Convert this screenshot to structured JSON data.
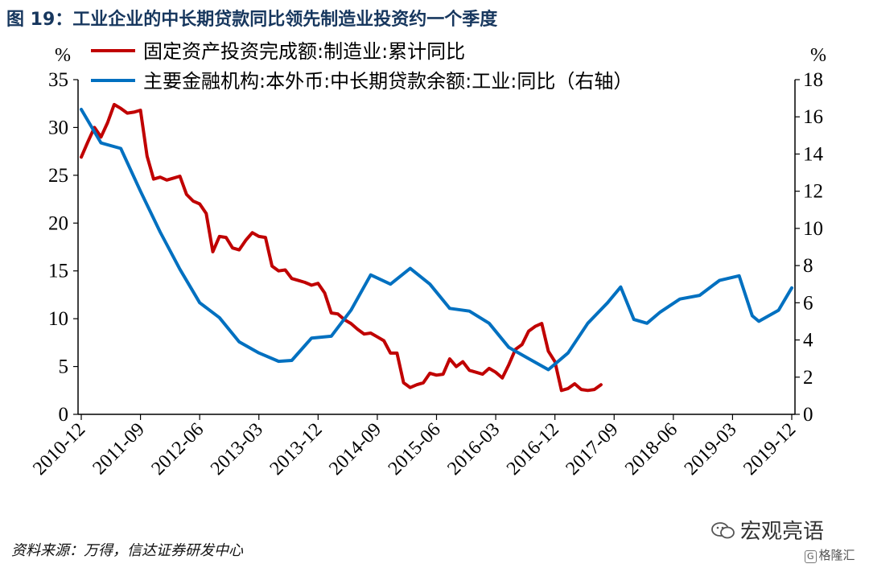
{
  "figure_title": "图  19：工业企业的中长期贷款同比领先制造业投资约一个季度",
  "source_note": "资料来源：万得，信达证券研发中心",
  "watermark": {
    "name": "宏观亮语",
    "sub": "格隆汇",
    "sub_icon": "G"
  },
  "colors": {
    "red": "#C00000",
    "blue": "#0070C0",
    "title": "#17375E",
    "axis": "#000000"
  },
  "chart_data": {
    "type": "line",
    "title": "工业企业的中长期贷款同比领先制造业投资约一个季度",
    "left_unit": "%",
    "right_unit": "%",
    "ylim_left": [
      0,
      35
    ],
    "ylim_right": [
      0,
      18
    ],
    "left_ticks": [
      "0",
      "5",
      "10",
      "15",
      "20",
      "25",
      "30",
      "35"
    ],
    "right_ticks": [
      "0",
      "2",
      "4",
      "6",
      "8",
      "10",
      "12",
      "14",
      "16",
      "18"
    ],
    "x_tick_labels": [
      "2010-12",
      "2011-09",
      "2012-06",
      "2013-03",
      "2013-12",
      "2014-09",
      "2015-06",
      "2016-03",
      "2016-12",
      "2017-09",
      "2018-06",
      "2019-03",
      "2019-12"
    ],
    "legend_position": "top",
    "series": [
      {
        "name": "固定资产投资完成额:制造业:累计同比",
        "axis": "left",
        "color": "#C00000",
        "points": [
          [
            0,
            26.9
          ],
          [
            1,
            28.5
          ],
          [
            2,
            30.0
          ],
          [
            3,
            29.0
          ],
          [
            4,
            30.5
          ],
          [
            5,
            32.4
          ],
          [
            6,
            32.0
          ],
          [
            7,
            31.5
          ],
          [
            8,
            31.6
          ],
          [
            9,
            31.8
          ],
          [
            10,
            27.0
          ],
          [
            11,
            24.6
          ],
          [
            12,
            24.8
          ],
          [
            13,
            24.5
          ],
          [
            14,
            24.7
          ],
          [
            15,
            24.9
          ],
          [
            16,
            23.0
          ],
          [
            17,
            22.3
          ],
          [
            18,
            22.0
          ],
          [
            19,
            21.0
          ],
          [
            20,
            17.0
          ],
          [
            21,
            18.6
          ],
          [
            22,
            18.5
          ],
          [
            23,
            17.4
          ],
          [
            24,
            17.2
          ],
          [
            25,
            18.2
          ],
          [
            26,
            19.0
          ],
          [
            27,
            18.6
          ],
          [
            28,
            18.5
          ],
          [
            29,
            15.5
          ],
          [
            30,
            15.0
          ],
          [
            31,
            15.1
          ],
          [
            32,
            14.2
          ],
          [
            33,
            14.0
          ],
          [
            34,
            13.8
          ],
          [
            35,
            13.5
          ],
          [
            36,
            13.7
          ],
          [
            37,
            12.7
          ],
          [
            38,
            10.6
          ],
          [
            39,
            10.5
          ],
          [
            40,
            9.9
          ],
          [
            41,
            9.5
          ],
          [
            42,
            8.9
          ],
          [
            43,
            8.4
          ],
          [
            44,
            8.5
          ],
          [
            45,
            8.1
          ],
          [
            46,
            7.7
          ],
          [
            47,
            6.4
          ],
          [
            48,
            6.4
          ],
          [
            49,
            3.3
          ],
          [
            50,
            2.8
          ],
          [
            51,
            3.1
          ],
          [
            52,
            3.3
          ],
          [
            53,
            4.3
          ],
          [
            54,
            4.1
          ],
          [
            55,
            4.2
          ],
          [
            56,
            5.8
          ],
          [
            57,
            5.0
          ],
          [
            58,
            5.5
          ],
          [
            59,
            4.6
          ],
          [
            60,
            4.4
          ],
          [
            61,
            4.2
          ],
          [
            62,
            4.8
          ],
          [
            63,
            4.4
          ],
          [
            64,
            3.8
          ],
          [
            65,
            5.2
          ],
          [
            66,
            6.8
          ],
          [
            67,
            7.3
          ],
          [
            68,
            8.7
          ],
          [
            69,
            9.2
          ],
          [
            70,
            9.5
          ],
          [
            71,
            6.6
          ],
          [
            72,
            5.5
          ],
          [
            73,
            2.5
          ],
          [
            74,
            2.7
          ],
          [
            75,
            3.2
          ],
          [
            76,
            2.6
          ],
          [
            77,
            2.5
          ],
          [
            78,
            2.6
          ],
          [
            79,
            3.1
          ]
        ]
      },
      {
        "name": "主要金融机构:本外币:中长期贷款余额:工业:同比（右轴）",
        "axis": "right",
        "color": "#0070C0",
        "points": [
          [
            0,
            16.4
          ],
          [
            3,
            14.6
          ],
          [
            6,
            14.3
          ],
          [
            9,
            12.0
          ],
          [
            12,
            9.8
          ],
          [
            15,
            7.8
          ],
          [
            18,
            6.0
          ],
          [
            21,
            5.2
          ],
          [
            24,
            3.9
          ],
          [
            27,
            3.3
          ],
          [
            30,
            2.85
          ],
          [
            32,
            2.9
          ],
          [
            35,
            4.1
          ],
          [
            38,
            4.2
          ],
          [
            41,
            5.6
          ],
          [
            44,
            7.5
          ],
          [
            47,
            7.0
          ],
          [
            50,
            7.85
          ],
          [
            53,
            7.0
          ],
          [
            56,
            5.7
          ],
          [
            59,
            5.55
          ],
          [
            62,
            4.9
          ],
          [
            65,
            3.6
          ],
          [
            68,
            3.0
          ],
          [
            71,
            2.4
          ],
          [
            74,
            3.3
          ],
          [
            77,
            4.9
          ],
          [
            80,
            6.0
          ],
          [
            82,
            6.85
          ],
          [
            84,
            5.1
          ],
          [
            86,
            4.9
          ],
          [
            88,
            5.5
          ],
          [
            91,
            6.2
          ],
          [
            94,
            6.4
          ],
          [
            97,
            7.2
          ],
          [
            100,
            7.45
          ],
          [
            102,
            5.3
          ],
          [
            103,
            5.0
          ],
          [
            106,
            5.6
          ],
          [
            108,
            6.8
          ]
        ]
      }
    ]
  }
}
